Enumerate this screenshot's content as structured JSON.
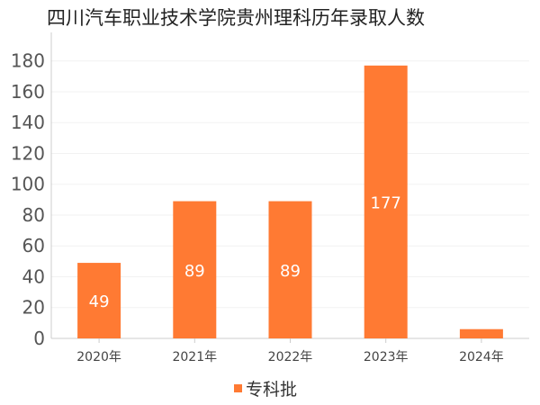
{
  "chart_data": {
    "type": "bar",
    "title": "四川汽车职业技术学院贵州理科历年录取人数",
    "categories": [
      "2020年",
      "2021年",
      "2022年",
      "2023年",
      "2024年"
    ],
    "series": [
      {
        "name": "专科批",
        "values": [
          49,
          89,
          89,
          177,
          6
        ],
        "data_labels": [
          "49",
          "89",
          "89",
          "177",
          ""
        ]
      }
    ],
    "yticks": [
      "0",
      "20",
      "40",
      "60",
      "80",
      "100",
      "120",
      "140",
      "160",
      "180"
    ],
    "ylim": [
      0,
      195
    ],
    "xlabel": "",
    "ylabel": "",
    "grid": true,
    "legend": "bottom-center",
    "colors": {
      "bar": "#FF7A33",
      "grid": "#F2F2F2",
      "axis": "#CCCCCC"
    }
  }
}
